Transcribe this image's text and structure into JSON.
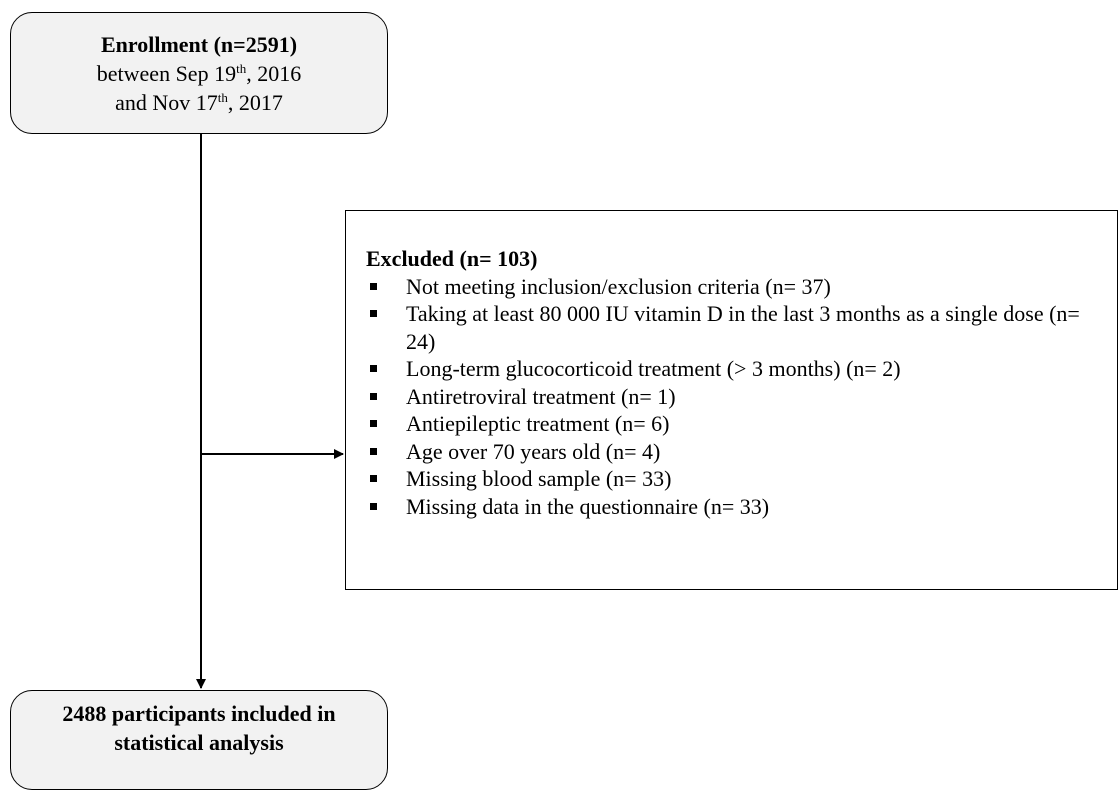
{
  "enrollment": {
    "title": "Enrollment (n=2591)",
    "line1": {
      "text": "between Sep 19",
      "superscript": "th",
      "rest": ", 2016"
    },
    "line2": {
      "text": "and Nov 17",
      "superscript": "th",
      "rest": ", 2017"
    }
  },
  "excluded": {
    "title": "Excluded (n= 103)",
    "items": [
      "Not meeting inclusion/exclusion criteria (n= 37)",
      "Taking at least 80 000 IU vitamin D in the last 3 months as a single dose (n= 24)",
      "Long-term glucocorticoid treatment (> 3 months) (n= 2)",
      "Antiretroviral treatment (n= 1)",
      "Antiepileptic treatment (n= 6)",
      "Age over 70 years old (n= 4)",
      "Missing blood sample (n= 33)",
      "Missing data in the questionnaire (n= 33)"
    ]
  },
  "included": {
    "title": "2488 participants included in statistical analysis"
  }
}
